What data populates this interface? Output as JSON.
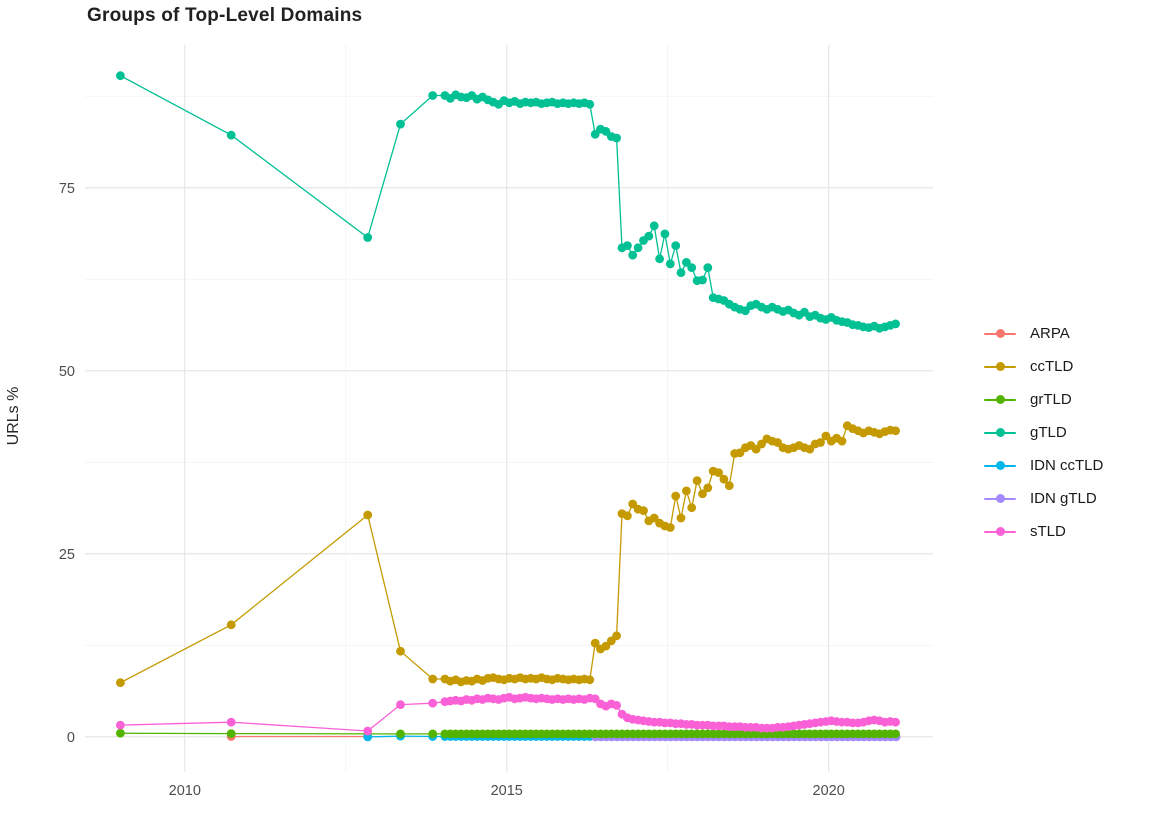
{
  "chart_data": {
    "type": "line",
    "markers": true,
    "title": "Groups of Top-Level Domains",
    "xlabel": "",
    "ylabel": "URLs %",
    "grid": "on",
    "legend_position": "right",
    "xlim": [
      2008.45,
      2021.62
    ],
    "ylim": [
      -4.8,
      94.5
    ],
    "x_axis": {
      "ticks": [
        {
          "v": 2010,
          "label": "2010"
        },
        {
          "v": 2015,
          "label": "2015"
        },
        {
          "v": 2020,
          "label": "2020"
        }
      ],
      "minor": [
        2012.5,
        2017.5
      ]
    },
    "y_axis": {
      "ticks": [
        {
          "v": 0,
          "label": "0"
        },
        {
          "v": 25,
          "label": "25"
        },
        {
          "v": 50,
          "label": "50"
        },
        {
          "v": 75,
          "label": "75"
        }
      ],
      "minor": [
        12.5,
        37.5,
        62.5,
        87.5
      ]
    },
    "draw_order": [
      "ARPA",
      "IDN ccTLD",
      "IDN gTLD",
      "grTLD",
      "ccTLD",
      "gTLD",
      "sTLD"
    ],
    "series": [
      {
        "name": "ARPA",
        "color": "#F8766D",
        "points": [
          [
            2010.72,
            0.05
          ],
          [
            2012.84,
            0.05
          ]
        ]
      },
      {
        "name": "ccTLD",
        "color": "#C49A00",
        "points": [
          [
            2009.0,
            7.4
          ],
          [
            2010.72,
            15.3
          ],
          [
            2012.84,
            30.3
          ],
          [
            2013.35,
            11.7
          ],
          [
            2013.85,
            7.9
          ]
        ],
        "monthly": {
          "start": 2014.04,
          "step": 0.08333,
          "values": [
            7.9,
            7.6,
            7.8,
            7.5,
            7.7,
            7.6,
            7.9,
            7.7,
            8.0,
            8.1,
            7.9,
            7.8,
            8.0,
            7.9,
            8.1,
            7.9,
            8.0,
            7.9,
            8.1,
            7.9,
            7.8,
            8.0,
            7.9,
            7.8,
            7.9,
            7.8,
            7.9,
            7.8,
            12.8,
            12.0,
            12.4,
            13.1,
            13.8,
            30.5,
            30.2,
            31.8,
            31.1,
            30.9,
            29.5,
            29.9,
            29.2,
            28.8,
            28.6,
            32.9,
            29.9,
            33.6,
            31.3,
            35.0,
            33.2,
            34.0,
            36.3,
            36.1,
            35.2,
            34.3,
            38.7,
            38.8,
            39.5,
            39.8,
            39.3,
            40.0,
            40.7,
            40.4,
            40.2,
            39.5,
            39.3,
            39.5,
            39.8,
            39.5,
            39.3,
            40.0,
            40.2,
            41.1,
            40.4,
            40.8,
            40.4,
            42.5,
            42.1,
            41.8,
            41.5,
            41.8,
            41.6,
            41.4,
            41.7,
            41.9,
            41.8
          ]
        }
      },
      {
        "name": "grTLD",
        "color": "#53B400",
        "points": [
          [
            2009.0,
            0.5
          ],
          [
            2010.72,
            0.45
          ],
          [
            2013.35,
            0.4
          ],
          [
            2013.85,
            0.4
          ]
        ],
        "monthly": {
          "start": 2014.04,
          "step": 0.08333,
          "const": 0.4,
          "count": 85
        }
      },
      {
        "name": "gTLD",
        "color": "#00C094",
        "points": [
          [
            2009.0,
            90.3
          ],
          [
            2010.72,
            82.2
          ],
          [
            2012.84,
            68.2
          ],
          [
            2013.35,
            83.7
          ],
          [
            2013.85,
            87.6
          ]
        ],
        "monthly": {
          "start": 2014.04,
          "step": 0.08333,
          "values": [
            87.6,
            87.2,
            87.7,
            87.4,
            87.3,
            87.6,
            87.1,
            87.4,
            87.0,
            86.7,
            86.4,
            86.9,
            86.6,
            86.8,
            86.5,
            86.7,
            86.6,
            86.7,
            86.5,
            86.6,
            86.7,
            86.5,
            86.6,
            86.5,
            86.6,
            86.5,
            86.6,
            86.4,
            82.3,
            83.0,
            82.7,
            82.0,
            81.8,
            66.8,
            67.1,
            65.8,
            66.8,
            67.8,
            68.4,
            69.8,
            65.3,
            68.7,
            64.6,
            67.1,
            63.4,
            64.8,
            64.1,
            62.3,
            62.4,
            64.1,
            60.0,
            59.8,
            59.6,
            59.1,
            58.7,
            58.4,
            58.2,
            58.9,
            59.1,
            58.7,
            58.4,
            58.7,
            58.4,
            58.1,
            58.3,
            57.9,
            57.6,
            58.0,
            57.4,
            57.6,
            57.2,
            57.0,
            57.3,
            56.9,
            56.7,
            56.6,
            56.3,
            56.2,
            56.0,
            55.9,
            56.1,
            55.8,
            56.0,
            56.2,
            56.4
          ]
        }
      },
      {
        "name": "IDN ccTLD",
        "color": "#00B6EB",
        "points": [
          [
            2012.84,
            0.0
          ],
          [
            2013.35,
            0.1
          ],
          [
            2013.85,
            0.05
          ]
        ],
        "monthly": {
          "start": 2014.04,
          "step": 0.08333,
          "const": 0.05,
          "count": 85
        }
      },
      {
        "name": "IDN gTLD",
        "color": "#A58AFF",
        "points": [],
        "monthly": {
          "start": 2016.38,
          "step": 0.08333,
          "const": 0.0,
          "count": 57
        }
      },
      {
        "name": "sTLD",
        "color": "#FB61D7",
        "points": [
          [
            2009.0,
            1.6
          ],
          [
            2010.72,
            2.0
          ],
          [
            2012.84,
            0.8
          ],
          [
            2013.35,
            4.4
          ],
          [
            2013.85,
            4.6
          ]
        ],
        "monthly": {
          "start": 2014.04,
          "step": 0.08333,
          "values": [
            4.8,
            4.9,
            5.0,
            4.9,
            5.1,
            5.0,
            5.2,
            5.1,
            5.3,
            5.2,
            5.1,
            5.3,
            5.4,
            5.2,
            5.3,
            5.4,
            5.3,
            5.2,
            5.3,
            5.2,
            5.1,
            5.2,
            5.1,
            5.2,
            5.1,
            5.2,
            5.1,
            5.3,
            5.2,
            4.5,
            4.2,
            4.5,
            4.3,
            3.1,
            2.6,
            2.4,
            2.3,
            2.2,
            2.1,
            2.0,
            2.0,
            1.9,
            1.9,
            1.8,
            1.8,
            1.7,
            1.7,
            1.6,
            1.6,
            1.6,
            1.5,
            1.5,
            1.5,
            1.4,
            1.4,
            1.4,
            1.3,
            1.3,
            1.3,
            1.2,
            1.2,
            1.2,
            1.3,
            1.3,
            1.4,
            1.5,
            1.6,
            1.7,
            1.8,
            1.9,
            2.0,
            2.1,
            2.2,
            2.1,
            2.0,
            2.0,
            1.9,
            1.9,
            2.0,
            2.2,
            2.3,
            2.2,
            2.0,
            2.1,
            2.0
          ]
        }
      }
    ],
    "style": {
      "grid_major_color": "#e4e4e4",
      "grid_minor_color": "#f2f2f2",
      "point_radius": 4.4,
      "line_width": 1.3
    }
  }
}
